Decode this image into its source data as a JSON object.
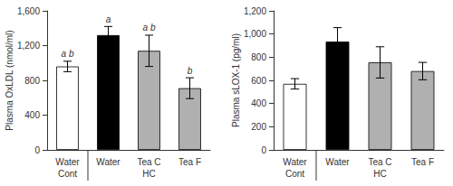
{
  "chart_data": [
    {
      "type": "bar",
      "ylabel": "Plasma OxLDL (nmol/ml)",
      "categories": [
        "Water",
        "Water",
        "Tea C",
        "Tea F"
      ],
      "values": [
        960,
        1320,
        1140,
        710
      ],
      "errors": [
        60,
        100,
        180,
        120
      ],
      "colors": [
        "white",
        "black",
        "#b0b0b0",
        "#b0b0b0"
      ],
      "ylim": [
        0,
        1600
      ],
      "yticks": [
        0,
        400,
        800,
        {
          "value": 1200,
          "label": "1,200"
        },
        {
          "value": 1600,
          "label": "1,600"
        }
      ],
      "grid": false,
      "annotations": [
        {
          "index": 0,
          "y": 1050,
          "text": "a b"
        },
        {
          "index": 1,
          "y": 1450,
          "text": "a"
        },
        {
          "index": 2,
          "y": 1360,
          "text": "a b"
        },
        {
          "index": 3,
          "y": 860,
          "text": "b"
        }
      ],
      "group_labels": [
        {
          "label": "Cont",
          "start": 0,
          "end": 0
        },
        {
          "label": "HC",
          "start": 1,
          "end": 3
        }
      ]
    },
    {
      "type": "bar",
      "ylabel": "Plasma sLOX-1 (pg/ml)",
      "categories": [
        "Water",
        "Water",
        "Tea C",
        "Tea F"
      ],
      "values": [
        570,
        935,
        755,
        680
      ],
      "errors": [
        45,
        120,
        135,
        75
      ],
      "colors": [
        "white",
        "black",
        "#b0b0b0",
        "#b0b0b0"
      ],
      "ylim": [
        0,
        1200
      ],
      "yticks": [
        0,
        200,
        400,
        600,
        800,
        {
          "value": 1000,
          "label": "1,000"
        },
        {
          "value": 1200,
          "label": "1,200"
        }
      ],
      "grid": false,
      "group_labels": [
        {
          "label": "Cont",
          "start": 0,
          "end": 0
        },
        {
          "label": "HC",
          "start": 1,
          "end": 3
        }
      ]
    }
  ]
}
